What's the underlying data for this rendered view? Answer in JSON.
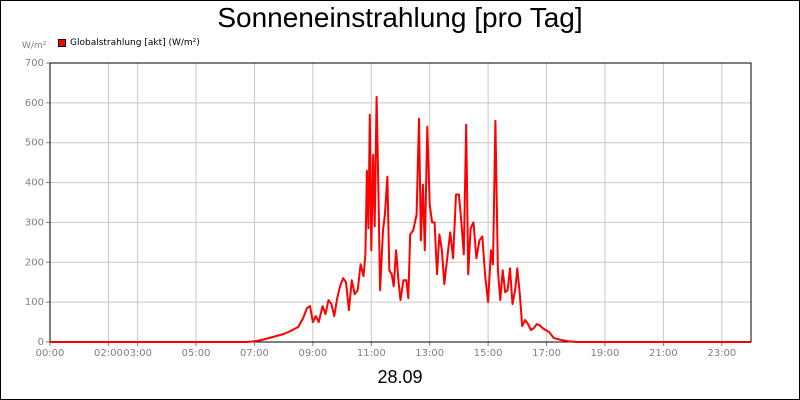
{
  "header": {
    "title": "Sonneneinstrahlung [pro Tag]",
    "unit": "W/m²",
    "legend": "Globalstrahlung [akt] (W/m²)",
    "date": "28.09"
  },
  "colors": {
    "series": "#ff0000",
    "grid": "#c8c8c8",
    "axis": "#000000",
    "ticks": "#808080"
  },
  "chart_data": {
    "type": "line",
    "title": "Sonneneinstrahlung [pro Tag]",
    "ylabel": "W/m²",
    "xlabel": "28.09",
    "ylim": [
      0,
      700
    ],
    "xlim": [
      "00:00",
      "24:00"
    ],
    "grid": true,
    "legend_position": "top-left",
    "yticks": [
      0,
      100,
      200,
      300,
      400,
      500,
      600,
      700
    ],
    "xticks": [
      {
        "t": "00:00",
        "label": "00:00"
      },
      {
        "t": "02:00",
        "label": "02:00"
      },
      {
        "t": "03:00",
        "label": "03:00"
      },
      {
        "t": "05:00",
        "label": "05:00"
      },
      {
        "t": "07:00",
        "label": "07:00"
      },
      {
        "t": "09:00",
        "label": "09:00"
      },
      {
        "t": "11:00",
        "label": "11:00"
      },
      {
        "t": "13:00",
        "label": "13:00"
      },
      {
        "t": "15:00",
        "label": "15:00"
      },
      {
        "t": "17:00",
        "label": "17:00"
      },
      {
        "t": "19:00",
        "label": "19:00"
      },
      {
        "t": "21:00",
        "label": "21:00"
      },
      {
        "t": "23:00",
        "label": "23:00"
      }
    ],
    "series": [
      {
        "name": "Globalstrahlung [akt] (W/m²)",
        "points": [
          [
            "00:00",
            0
          ],
          [
            "06:45",
            0
          ],
          [
            "07:00",
            2
          ],
          [
            "07:15",
            5
          ],
          [
            "07:30",
            10
          ],
          [
            "07:45",
            15
          ],
          [
            "08:00",
            20
          ],
          [
            "08:15",
            28
          ],
          [
            "08:30",
            38
          ],
          [
            "08:40",
            60
          ],
          [
            "08:48",
            85
          ],
          [
            "08:54",
            90
          ],
          [
            "09:00",
            50
          ],
          [
            "09:06",
            65
          ],
          [
            "09:12",
            50
          ],
          [
            "09:20",
            90
          ],
          [
            "09:26",
            70
          ],
          [
            "09:32",
            105
          ],
          [
            "09:38",
            95
          ],
          [
            "09:44",
            65
          ],
          [
            "09:50",
            110
          ],
          [
            "09:56",
            140
          ],
          [
            "10:02",
            160
          ],
          [
            "10:08",
            150
          ],
          [
            "10:14",
            80
          ],
          [
            "10:20",
            155
          ],
          [
            "10:26",
            120
          ],
          [
            "10:32",
            130
          ],
          [
            "10:38",
            195
          ],
          [
            "10:44",
            165
          ],
          [
            "10:48",
            220
          ],
          [
            "10:51",
            430
          ],
          [
            "10:54",
            285
          ],
          [
            "10:57",
            570
          ],
          [
            "11:00",
            230
          ],
          [
            "11:04",
            470
          ],
          [
            "11:07",
            290
          ],
          [
            "11:11",
            615
          ],
          [
            "11:14",
            420
          ],
          [
            "11:18",
            130
          ],
          [
            "11:24",
            280
          ],
          [
            "11:28",
            320
          ],
          [
            "11:33",
            415
          ],
          [
            "11:37",
            180
          ],
          [
            "11:42",
            170
          ],
          [
            "11:46",
            140
          ],
          [
            "11:51",
            230
          ],
          [
            "11:56",
            150
          ],
          [
            "12:00",
            105
          ],
          [
            "12:06",
            155
          ],
          [
            "12:12",
            155
          ],
          [
            "12:16",
            110
          ],
          [
            "12:20",
            270
          ],
          [
            "12:26",
            280
          ],
          [
            "12:33",
            320
          ],
          [
            "12:38",
            560
          ],
          [
            "12:42",
            255
          ],
          [
            "12:46",
            395
          ],
          [
            "12:50",
            230
          ],
          [
            "12:55",
            540
          ],
          [
            "13:00",
            345
          ],
          [
            "13:05",
            300
          ],
          [
            "13:10",
            300
          ],
          [
            "13:15",
            170
          ],
          [
            "13:20",
            270
          ],
          [
            "13:25",
            230
          ],
          [
            "13:30",
            145
          ],
          [
            "13:36",
            210
          ],
          [
            "13:42",
            275
          ],
          [
            "13:48",
            210
          ],
          [
            "13:54",
            370
          ],
          [
            "14:00",
            370
          ],
          [
            "14:05",
            300
          ],
          [
            "14:10",
            220
          ],
          [
            "14:15",
            545
          ],
          [
            "14:19",
            170
          ],
          [
            "14:24",
            285
          ],
          [
            "14:30",
            300
          ],
          [
            "14:36",
            210
          ],
          [
            "14:42",
            255
          ],
          [
            "14:48",
            265
          ],
          [
            "14:54",
            165
          ],
          [
            "15:00",
            100
          ],
          [
            "15:06",
            230
          ],
          [
            "15:10",
            195
          ],
          [
            "15:15",
            555
          ],
          [
            "15:20",
            180
          ],
          [
            "15:25",
            105
          ],
          [
            "15:30",
            180
          ],
          [
            "15:35",
            125
          ],
          [
            "15:40",
            130
          ],
          [
            "15:45",
            185
          ],
          [
            "15:50",
            95
          ],
          [
            "15:56",
            135
          ],
          [
            "16:00",
            185
          ],
          [
            "16:05",
            120
          ],
          [
            "16:10",
            40
          ],
          [
            "16:16",
            55
          ],
          [
            "16:22",
            45
          ],
          [
            "16:28",
            30
          ],
          [
            "16:34",
            35
          ],
          [
            "16:40",
            45
          ],
          [
            "16:46",
            42
          ],
          [
            "16:52",
            35
          ],
          [
            "16:58",
            30
          ],
          [
            "17:05",
            25
          ],
          [
            "17:15",
            10
          ],
          [
            "17:30",
            5
          ],
          [
            "17:45",
            2
          ],
          [
            "18:00",
            0
          ],
          [
            "23:59",
            0
          ]
        ]
      }
    ]
  }
}
